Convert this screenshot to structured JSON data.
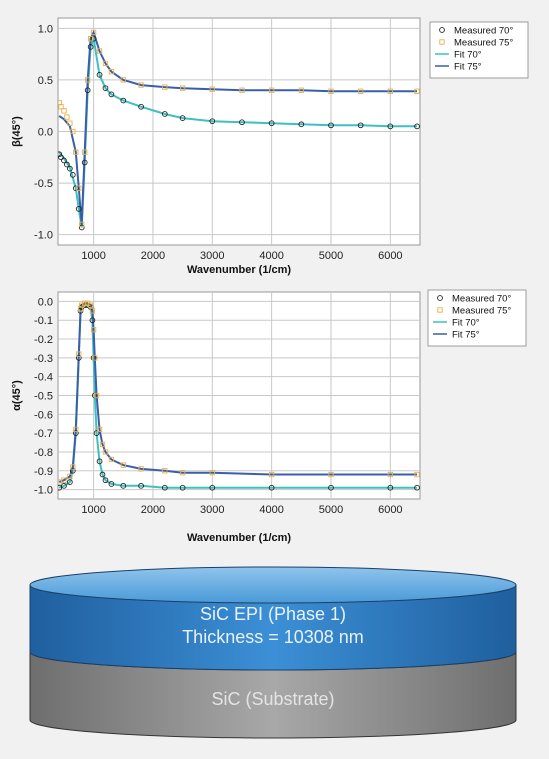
{
  "chart_data": [
    {
      "type": "scatter",
      "xlabel": "Wavenumber (1/cm)",
      "ylabel": "β(45°)",
      "xlim": [
        400,
        6500
      ],
      "ylim": [
        -1.1,
        1.1
      ],
      "xticks": [
        1000,
        2000,
        3000,
        4000,
        5000,
        6000
      ],
      "yticks": [
        1.0,
        0.5,
        0.0,
        -0.5,
        -1.0
      ],
      "ytick_labels": [
        "1.0",
        "0.5",
        "0.0",
        "-0.5",
        "-1.0"
      ],
      "grid": true,
      "legend_position": "right",
      "series": [
        {
          "name": "Measured 70°",
          "kind": "marker",
          "marker": "circle",
          "color": "#222222",
          "x": [
            420,
            450,
            500,
            550,
            600,
            650,
            700,
            750,
            800,
            850,
            900,
            950,
            1000,
            1100,
            1200,
            1300,
            1500,
            1800,
            2200,
            2500,
            3000,
            3500,
            4000,
            4500,
            5000,
            5500,
            6000,
            6450
          ],
          "y": [
            -0.22,
            -0.25,
            -0.28,
            -0.32,
            -0.36,
            -0.42,
            -0.55,
            -0.75,
            -0.93,
            -0.3,
            0.4,
            0.82,
            0.9,
            0.55,
            0.42,
            0.36,
            0.3,
            0.24,
            0.17,
            0.13,
            0.1,
            0.09,
            0.08,
            0.07,
            0.06,
            0.06,
            0.05,
            0.05
          ]
        },
        {
          "name": "Measured 75°",
          "kind": "marker",
          "marker": "square",
          "color": "#e8b04a",
          "x": [
            420,
            450,
            500,
            550,
            600,
            650,
            700,
            750,
            800,
            850,
            900,
            950,
            1000,
            1100,
            1200,
            1300,
            1500,
            1800,
            2200,
            2500,
            3000,
            3500,
            4000,
            4500,
            5000,
            5500,
            6000,
            6450
          ],
          "y": [
            0.28,
            0.24,
            0.2,
            0.14,
            0.08,
            0.0,
            -0.2,
            -0.55,
            -0.9,
            -0.2,
            0.5,
            0.9,
            0.96,
            0.78,
            0.66,
            0.58,
            0.5,
            0.45,
            0.43,
            0.42,
            0.41,
            0.4,
            0.4,
            0.4,
            0.39,
            0.39,
            0.39,
            0.39
          ]
        },
        {
          "name": "Fit 70°",
          "kind": "line",
          "color": "#3fc0c0",
          "x": [
            420,
            500,
            600,
            700,
            750,
            800,
            850,
            900,
            950,
            1000,
            1100,
            1200,
            1300,
            1500,
            1800,
            2200,
            2500,
            3000,
            3500,
            4000,
            4500,
            5000,
            5500,
            6000,
            6450
          ],
          "y": [
            -0.2,
            -0.26,
            -0.35,
            -0.55,
            -0.75,
            -0.93,
            -0.3,
            0.4,
            0.82,
            0.9,
            0.55,
            0.42,
            0.36,
            0.3,
            0.24,
            0.17,
            0.13,
            0.1,
            0.09,
            0.08,
            0.07,
            0.06,
            0.06,
            0.05,
            0.05
          ]
        },
        {
          "name": "Fit 75°",
          "kind": "line",
          "color": "#3a5ea8",
          "x": [
            420,
            500,
            600,
            700,
            750,
            800,
            850,
            900,
            950,
            1000,
            1100,
            1200,
            1300,
            1500,
            1800,
            2200,
            2500,
            3000,
            3500,
            4000,
            4500,
            5000,
            5500,
            6000,
            6450
          ],
          "y": [
            0.15,
            0.12,
            0.05,
            -0.2,
            -0.55,
            -0.9,
            -0.2,
            0.5,
            0.9,
            0.96,
            0.78,
            0.66,
            0.58,
            0.5,
            0.45,
            0.43,
            0.42,
            0.41,
            0.4,
            0.4,
            0.4,
            0.39,
            0.39,
            0.39,
            0.39
          ]
        }
      ]
    },
    {
      "type": "scatter",
      "xlabel": "Wavenumber (1/cm)",
      "ylabel": "α(45°)",
      "xlim": [
        400,
        6500
      ],
      "ylim": [
        -1.05,
        0.05
      ],
      "xticks": [
        1000,
        2000,
        3000,
        4000,
        5000,
        6000
      ],
      "yticks": [
        0.0,
        -0.1,
        -0.2,
        -0.3,
        -0.4,
        -0.5,
        -0.6,
        -0.7,
        -0.8,
        -0.9,
        -1.0
      ],
      "ytick_labels": [
        "0.0",
        "-0.1",
        "-0.2",
        "-0.3",
        "-0.4",
        "-0.5",
        "-0.6",
        "-0.7",
        "-0.8",
        "-0.9",
        "-1.0"
      ],
      "grid": true,
      "legend_position": "right",
      "series": [
        {
          "name": "Measured 70°",
          "kind": "marker",
          "marker": "circle",
          "color": "#222222",
          "x": [
            420,
            500,
            600,
            650,
            700,
            750,
            780,
            800,
            850,
            900,
            950,
            980,
            1000,
            1020,
            1050,
            1100,
            1150,
            1200,
            1300,
            1500,
            1800,
            2200,
            2500,
            3000,
            4000,
            5000,
            6000,
            6450
          ],
          "y": [
            -0.99,
            -0.98,
            -0.96,
            -0.9,
            -0.7,
            -0.3,
            -0.05,
            -0.03,
            -0.02,
            -0.02,
            -0.03,
            -0.1,
            -0.3,
            -0.5,
            -0.7,
            -0.85,
            -0.92,
            -0.95,
            -0.97,
            -0.98,
            -0.98,
            -0.99,
            -0.99,
            -0.99,
            -0.99,
            -0.99,
            -0.99,
            -0.99
          ]
        },
        {
          "name": "Measured 75°",
          "kind": "marker",
          "marker": "square",
          "color": "#e8b04a",
          "x": [
            420,
            500,
            600,
            650,
            700,
            750,
            780,
            800,
            850,
            900,
            950,
            980,
            1000,
            1020,
            1050,
            1100,
            1150,
            1200,
            1300,
            1500,
            1800,
            2200,
            2500,
            3000,
            4000,
            5000,
            6000,
            6450
          ],
          "y": [
            -0.96,
            -0.95,
            -0.93,
            -0.88,
            -0.68,
            -0.28,
            -0.04,
            -0.02,
            -0.01,
            -0.01,
            -0.02,
            -0.05,
            -0.15,
            -0.3,
            -0.5,
            -0.68,
            -0.76,
            -0.8,
            -0.84,
            -0.87,
            -0.89,
            -0.9,
            -0.91,
            -0.91,
            -0.92,
            -0.92,
            -0.92,
            -0.92
          ]
        },
        {
          "name": "Fit 70°",
          "kind": "line",
          "color": "#3fc0c0",
          "x": [
            420,
            500,
            600,
            650,
            700,
            750,
            780,
            800,
            850,
            900,
            950,
            980,
            1000,
            1020,
            1050,
            1100,
            1150,
            1200,
            1300,
            1500,
            1800,
            2200,
            2500,
            3000,
            4000,
            5000,
            6000,
            6450
          ],
          "y": [
            -0.99,
            -0.98,
            -0.96,
            -0.9,
            -0.7,
            -0.3,
            -0.05,
            -0.03,
            -0.02,
            -0.02,
            -0.03,
            -0.1,
            -0.3,
            -0.5,
            -0.7,
            -0.85,
            -0.92,
            -0.95,
            -0.97,
            -0.98,
            -0.98,
            -0.99,
            -0.99,
            -0.99,
            -0.99,
            -0.99,
            -0.99,
            -0.99
          ]
        },
        {
          "name": "Fit 75°",
          "kind": "line",
          "color": "#3a5ea8",
          "x": [
            420,
            500,
            600,
            650,
            700,
            750,
            780,
            800,
            850,
            900,
            950,
            980,
            1000,
            1020,
            1050,
            1100,
            1150,
            1200,
            1300,
            1500,
            1800,
            2200,
            2500,
            3000,
            4000,
            5000,
            6000,
            6450
          ],
          "y": [
            -0.96,
            -0.95,
            -0.93,
            -0.88,
            -0.68,
            -0.28,
            -0.04,
            -0.02,
            -0.01,
            -0.01,
            -0.02,
            -0.05,
            -0.15,
            -0.3,
            -0.5,
            -0.68,
            -0.76,
            -0.8,
            -0.84,
            -0.87,
            -0.89,
            -0.9,
            -0.91,
            -0.91,
            -0.92,
            -0.92,
            -0.92,
            -0.92
          ]
        }
      ]
    }
  ],
  "layer_stack": {
    "top_layer": {
      "line1": "SiC EPI (Phase 1)",
      "line2": "Thickness = 10308 nm",
      "color": "#2d7ac4"
    },
    "bottom_layer": {
      "label": "SiC (Substrate)",
      "color": "#8a8a8a"
    }
  }
}
